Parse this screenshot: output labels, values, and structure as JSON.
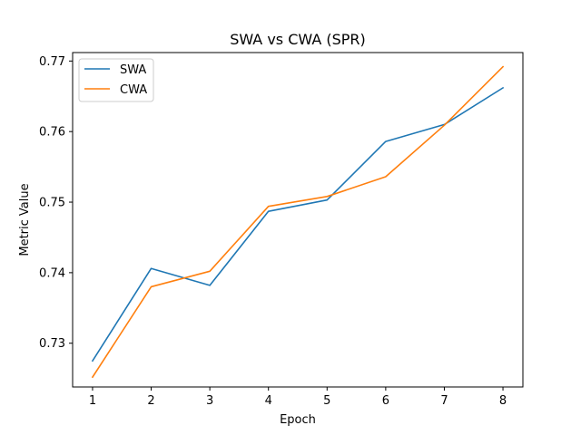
{
  "chart_data": {
    "type": "line",
    "title": "SWA vs CWA (SPR)",
    "xlabel": "Epoch",
    "ylabel": "Metric Value",
    "x": [
      1,
      2,
      3,
      4,
      5,
      6,
      7,
      8
    ],
    "xticks": [
      "1",
      "2",
      "3",
      "4",
      "5",
      "6",
      "7",
      "8"
    ],
    "yticks": [
      0.73,
      0.74,
      0.75,
      0.76,
      0.77
    ],
    "ytick_labels": [
      "0.73",
      "0.74",
      "0.75",
      "0.76",
      "0.77"
    ],
    "xlim": [
      0.66,
      8.34
    ],
    "ylim": [
      0.7238,
      0.7712
    ],
    "grid": false,
    "legend": "top-left",
    "series": [
      {
        "name": "SWA",
        "color": "#1f77b4",
        "values": [
          0.7275,
          0.7406,
          0.7382,
          0.7487,
          0.7503,
          0.7586,
          0.761,
          0.7662
        ]
      },
      {
        "name": "CWA",
        "color": "#ff7f0e",
        "values": [
          0.7252,
          0.738,
          0.7402,
          0.7494,
          0.7508,
          0.7536,
          0.7609,
          0.7692
        ]
      }
    ]
  }
}
